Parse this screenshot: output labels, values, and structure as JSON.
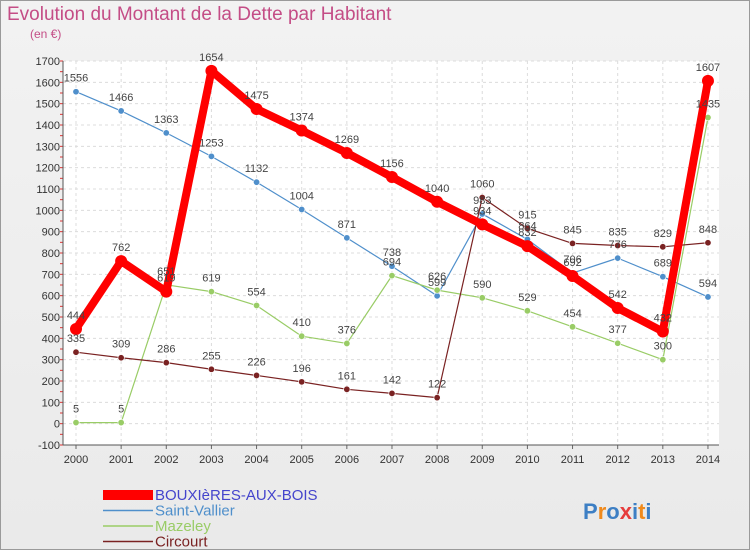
{
  "chart_data": {
    "type": "line",
    "title": "Evolution du Montant de la Dette par Habitant",
    "subtitle": "(en €)",
    "xlabel": "",
    "ylabel": "",
    "ylim": [
      -100,
      1700
    ],
    "yticks": [
      "-100",
      "0",
      "100",
      "200",
      "300",
      "400",
      "500",
      "600",
      "700",
      "800",
      "900",
      "1000",
      "1100",
      "1200",
      "1300",
      "1400",
      "1500",
      "1600",
      "1700"
    ],
    "categories": [
      "2000",
      "2001",
      "2002",
      "2003",
      "2004",
      "2005",
      "2006",
      "2007",
      "2008",
      "2009",
      "2010",
      "2011",
      "2012",
      "2013",
      "2014"
    ],
    "series": [
      {
        "name": "BOUXIèRES-AUX-BOIS",
        "color": "#ff0000",
        "values": [
          444,
          762,
          619,
          1654,
          1475,
          1374,
          1269,
          1156,
          1040,
          934,
          832,
          692,
          542,
          432,
          1607
        ]
      },
      {
        "name": "Saint-Vallier",
        "color": "#4f8fcb",
        "values": [
          1556,
          1466,
          1363,
          1253,
          1132,
          1004,
          871,
          738,
          599,
          983,
          864,
          706,
          776,
          689,
          594
        ]
      },
      {
        "name": "Mazeley",
        "color": "#99cc66",
        "values": [
          5,
          5,
          651,
          619,
          554,
          410,
          376,
          694,
          626,
          590,
          529,
          454,
          377,
          300,
          1435
        ]
      },
      {
        "name": "Circourt",
        "color": "#7a2222",
        "values": [
          335,
          309,
          286,
          255,
          226,
          196,
          161,
          142,
          122,
          1060,
          915,
          845,
          835,
          829,
          848
        ]
      }
    ],
    "legend_position": "bottom-left"
  },
  "brand": {
    "letters": [
      "P",
      "r",
      "o",
      "x",
      "i",
      "t",
      "i"
    ]
  }
}
